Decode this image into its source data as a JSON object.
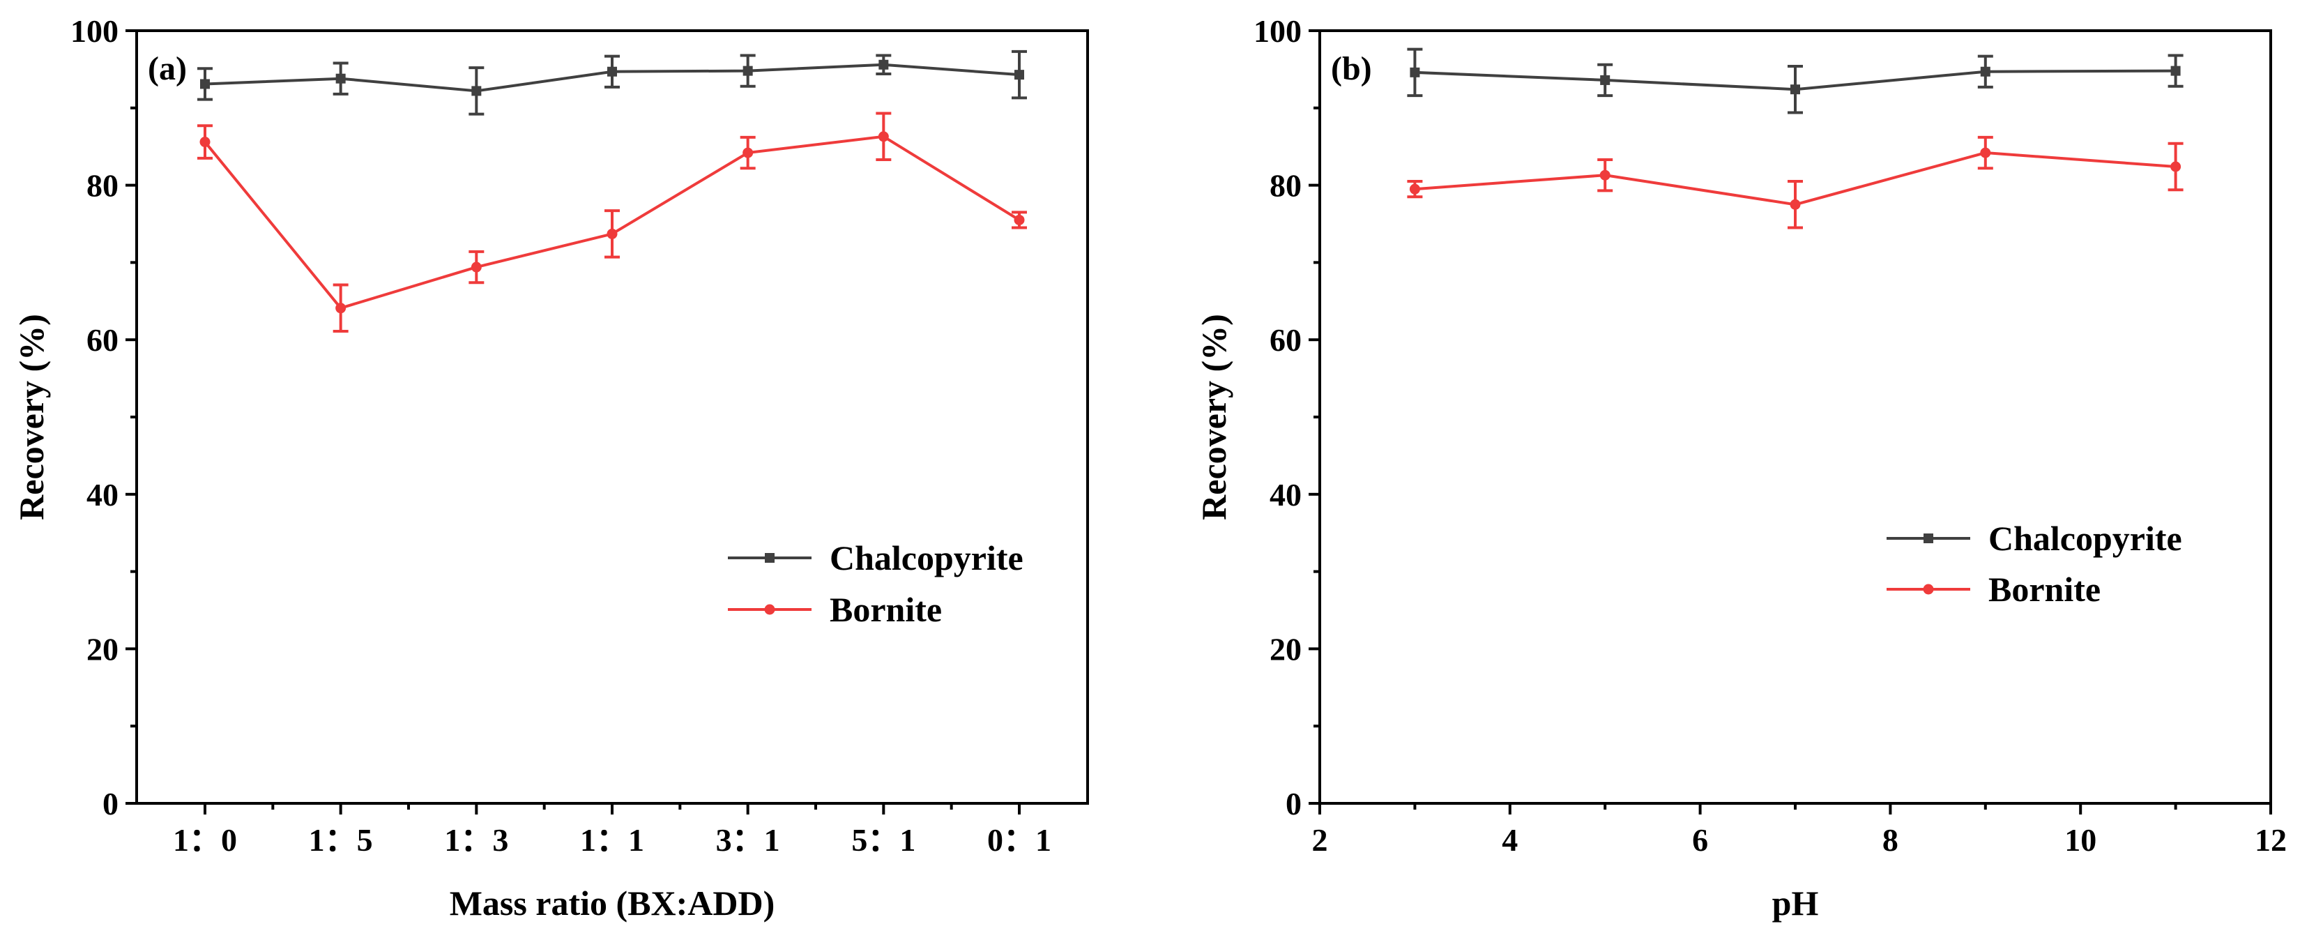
{
  "colors": {
    "chalcopyrite": "#404040",
    "bornite": "#ef3b3b",
    "axis": "#000000"
  },
  "chart_data": [
    {
      "type": "line",
      "panel_label": "(a)",
      "xlabel": "Mass ratio (BX:ADD)",
      "ylabel": "Recovery (%)",
      "categories": [
        "1：0",
        "1：5",
        "1：3",
        "1：1",
        "3：1",
        "5：1",
        "0：1"
      ],
      "ylim": [
        0,
        100
      ],
      "yticks": [
        0,
        20,
        40,
        60,
        80,
        100
      ],
      "ytick_labels": [
        "0",
        "20",
        "40",
        "60",
        "80",
        "100"
      ],
      "legend_position": "center-right",
      "series": [
        {
          "name": "Chalcopyrite",
          "marker": "square",
          "color": "#404040",
          "values": [
            93.1,
            93.8,
            92.2,
            94.7,
            94.8,
            95.6,
            94.3
          ],
          "errors": [
            2.0,
            2.0,
            3.0,
            2.0,
            2.0,
            1.2,
            3.0
          ]
        },
        {
          "name": "Bornite",
          "marker": "circle",
          "color": "#ef3b3b",
          "values": [
            85.6,
            64.1,
            69.4,
            73.7,
            84.2,
            86.3,
            75.5
          ],
          "errors": [
            2.1,
            3.0,
            2.0,
            3.0,
            2.0,
            3.0,
            1.0
          ]
        }
      ]
    },
    {
      "type": "line",
      "panel_label": "(b)",
      "xlabel": "pH",
      "ylabel": "Recovery (%)",
      "xlim": [
        2,
        12
      ],
      "xticks": [
        2,
        4,
        6,
        8,
        10,
        12
      ],
      "xtick_labels": [
        "2",
        "4",
        "6",
        "8",
        "10",
        "12"
      ],
      "ylim": [
        0,
        100
      ],
      "yticks": [
        0,
        20,
        40,
        60,
        80,
        100
      ],
      "ytick_labels": [
        "0",
        "20",
        "40",
        "60",
        "80",
        "100"
      ],
      "legend_position": "center-right",
      "series": [
        {
          "name": "Chalcopyrite",
          "marker": "square",
          "color": "#404040",
          "x": [
            3,
            5,
            7,
            9,
            11
          ],
          "values": [
            94.6,
            93.6,
            92.4,
            94.7,
            94.8
          ],
          "errors": [
            3.0,
            2.0,
            3.0,
            2.0,
            2.0
          ]
        },
        {
          "name": "Bornite",
          "marker": "circle",
          "color": "#ef3b3b",
          "x": [
            3,
            5,
            7,
            9,
            11
          ],
          "values": [
            79.5,
            81.3,
            77.5,
            84.2,
            82.4
          ],
          "errors": [
            1.0,
            2.0,
            3.0,
            2.0,
            3.0
          ]
        }
      ]
    }
  ]
}
